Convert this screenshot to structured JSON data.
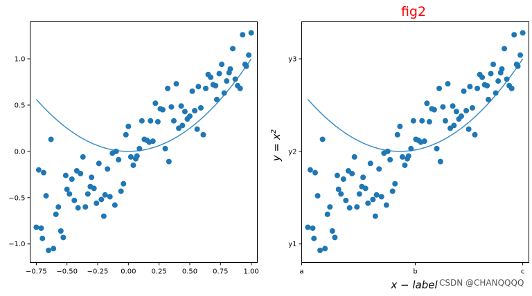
{
  "watermark": "CSDN @CHANQQQQ",
  "colors": {
    "points": "#1f77b4",
    "curve": "#3d8ec4",
    "title": "#ff0000"
  },
  "chart_data": [
    {
      "type": "scatter",
      "title": "",
      "xlabel": "",
      "ylabel": "",
      "xlim": [
        -0.8,
        1.05
      ],
      "ylim": [
        -1.2,
        1.4
      ],
      "xticks": [
        -0.75,
        -0.5,
        -0.25,
        0.0,
        0.25,
        0.5,
        0.75,
        1.0
      ],
      "xtick_labels": [
        "−0.75",
        "−0.50",
        "−0.25",
        "0.00",
        "0.25",
        "0.50",
        "0.75",
        "1.00"
      ],
      "yticks": [
        -1.0,
        -0.5,
        0.0,
        0.5,
        1.0
      ],
      "ytick_labels": [
        "−1.0",
        "−0.5",
        "0.0",
        "0.5",
        "1.0"
      ],
      "grid": false,
      "series": [
        {
          "kind": "line",
          "function": "x^2",
          "x_range": [
            -0.75,
            1.0
          ]
        },
        {
          "kind": "scatter",
          "points": [
            [
              -0.75,
              -0.82
            ],
            [
              -0.73,
              -0.2
            ],
            [
              -0.71,
              -0.83
            ],
            [
              -0.7,
              -0.94
            ],
            [
              -0.69,
              -0.23
            ],
            [
              -0.67,
              -0.48
            ],
            [
              -0.65,
              -1.07
            ],
            [
              -0.63,
              0.13
            ],
            [
              -0.61,
              -1.05
            ],
            [
              -0.59,
              -0.68
            ],
            [
              -0.57,
              -0.6
            ],
            [
              -0.55,
              -0.86
            ],
            [
              -0.53,
              -0.93
            ],
            [
              -0.51,
              -0.26
            ],
            [
              -0.5,
              -0.41
            ],
            [
              -0.48,
              -0.46
            ],
            [
              -0.46,
              -0.3
            ],
            [
              -0.44,
              -0.53
            ],
            [
              -0.42,
              -0.21
            ],
            [
              -0.41,
              -0.61
            ],
            [
              -0.39,
              -0.24
            ],
            [
              -0.37,
              -0.06
            ],
            [
              -0.35,
              -0.6
            ],
            [
              -0.33,
              -0.46
            ],
            [
              -0.31,
              -0.38
            ],
            [
              -0.3,
              -0.28
            ],
            [
              -0.28,
              -0.4
            ],
            [
              -0.26,
              -0.56
            ],
            [
              -0.24,
              -0.13
            ],
            [
              -0.22,
              -0.52
            ],
            [
              -0.2,
              -0.7
            ],
            [
              -0.19,
              -0.47
            ],
            [
              -0.17,
              -0.19
            ],
            [
              -0.15,
              -0.49
            ],
            [
              -0.13,
              -0.02
            ],
            [
              -0.11,
              -0.58
            ],
            [
              -0.1,
              0.0
            ],
            [
              -0.08,
              -0.09
            ],
            [
              -0.06,
              -0.43
            ],
            [
              -0.04,
              -0.35
            ],
            [
              -0.02,
              0.18
            ],
            [
              0.0,
              0.27
            ],
            [
              0.02,
              -0.06
            ],
            [
              0.04,
              -0.15
            ],
            [
              0.06,
              -0.08
            ],
            [
              0.07,
              -0.05
            ],
            [
              0.09,
              0.03
            ],
            [
              0.11,
              0.33
            ],
            [
              0.13,
              0.13
            ],
            [
              0.15,
              0.12
            ],
            [
              0.17,
              0.1
            ],
            [
              0.18,
              0.33
            ],
            [
              0.2,
              0.11
            ],
            [
              0.22,
              0.52
            ],
            [
              0.24,
              0.32
            ],
            [
              0.26,
              0.46
            ],
            [
              0.28,
              0.45
            ],
            [
              0.3,
              0.03
            ],
            [
              0.32,
              0.68
            ],
            [
              0.33,
              -0.11
            ],
            [
              0.35,
              0.48
            ],
            [
              0.37,
              0.33
            ],
            [
              0.39,
              0.73
            ],
            [
              0.41,
              0.25
            ],
            [
              0.43,
              0.49
            ],
            [
              0.44,
              0.28
            ],
            [
              0.46,
              0.43
            ],
            [
              0.48,
              0.35
            ],
            [
              0.5,
              0.38
            ],
            [
              0.52,
              0.65
            ],
            [
              0.54,
              0.44
            ],
            [
              0.56,
              0.24
            ],
            [
              0.57,
              0.7
            ],
            [
              0.59,
              0.47
            ],
            [
              0.61,
              0.18
            ],
            [
              0.63,
              0.68
            ],
            [
              0.65,
              0.83
            ],
            [
              0.67,
              0.8
            ],
            [
              0.69,
              0.72
            ],
            [
              0.71,
              0.71
            ],
            [
              0.72,
              0.56
            ],
            [
              0.74,
              0.84
            ],
            [
              0.76,
              0.94
            ],
            [
              0.78,
              0.63
            ],
            [
              0.8,
              0.76
            ],
            [
              0.82,
              0.85
            ],
            [
              0.83,
              0.89
            ],
            [
              0.85,
              1.11
            ],
            [
              0.87,
              0.78
            ],
            [
              0.89,
              0.71
            ],
            [
              0.91,
              0.68
            ],
            [
              0.93,
              1.26
            ],
            [
              0.95,
              0.94
            ],
            [
              0.96,
              0.92
            ],
            [
              0.98,
              1.04
            ],
            [
              1.0,
              1.28
            ]
          ]
        }
      ]
    },
    {
      "type": "scatter",
      "title": "fig2",
      "xlabel": "x − label",
      "ylabel": "y = x²",
      "xlim": [
        -0.8,
        1.05
      ],
      "ylim": [
        -1.2,
        1.4
      ],
      "xticks": [
        -0.8,
        0.125,
        1.0
      ],
      "xtick_labels": [
        "a",
        "b",
        "c"
      ],
      "yticks": [
        -1.0,
        0.0,
        1.0
      ],
      "ytick_labels": [
        "y1",
        "y2",
        "y3"
      ],
      "grid": false,
      "series": [
        {
          "kind": "line",
          "function": "x^2",
          "x_range": [
            -0.75,
            1.0
          ]
        },
        {
          "kind": "scatter",
          "same_points_as_first_chart": true
        }
      ]
    }
  ]
}
